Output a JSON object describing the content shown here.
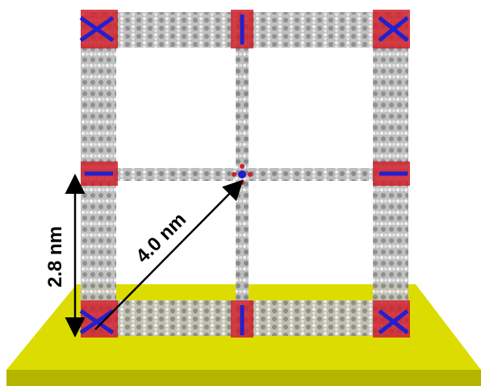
{
  "labels": {
    "height": "2.8 nm",
    "diagonal": "4.0 nm"
  }
}
